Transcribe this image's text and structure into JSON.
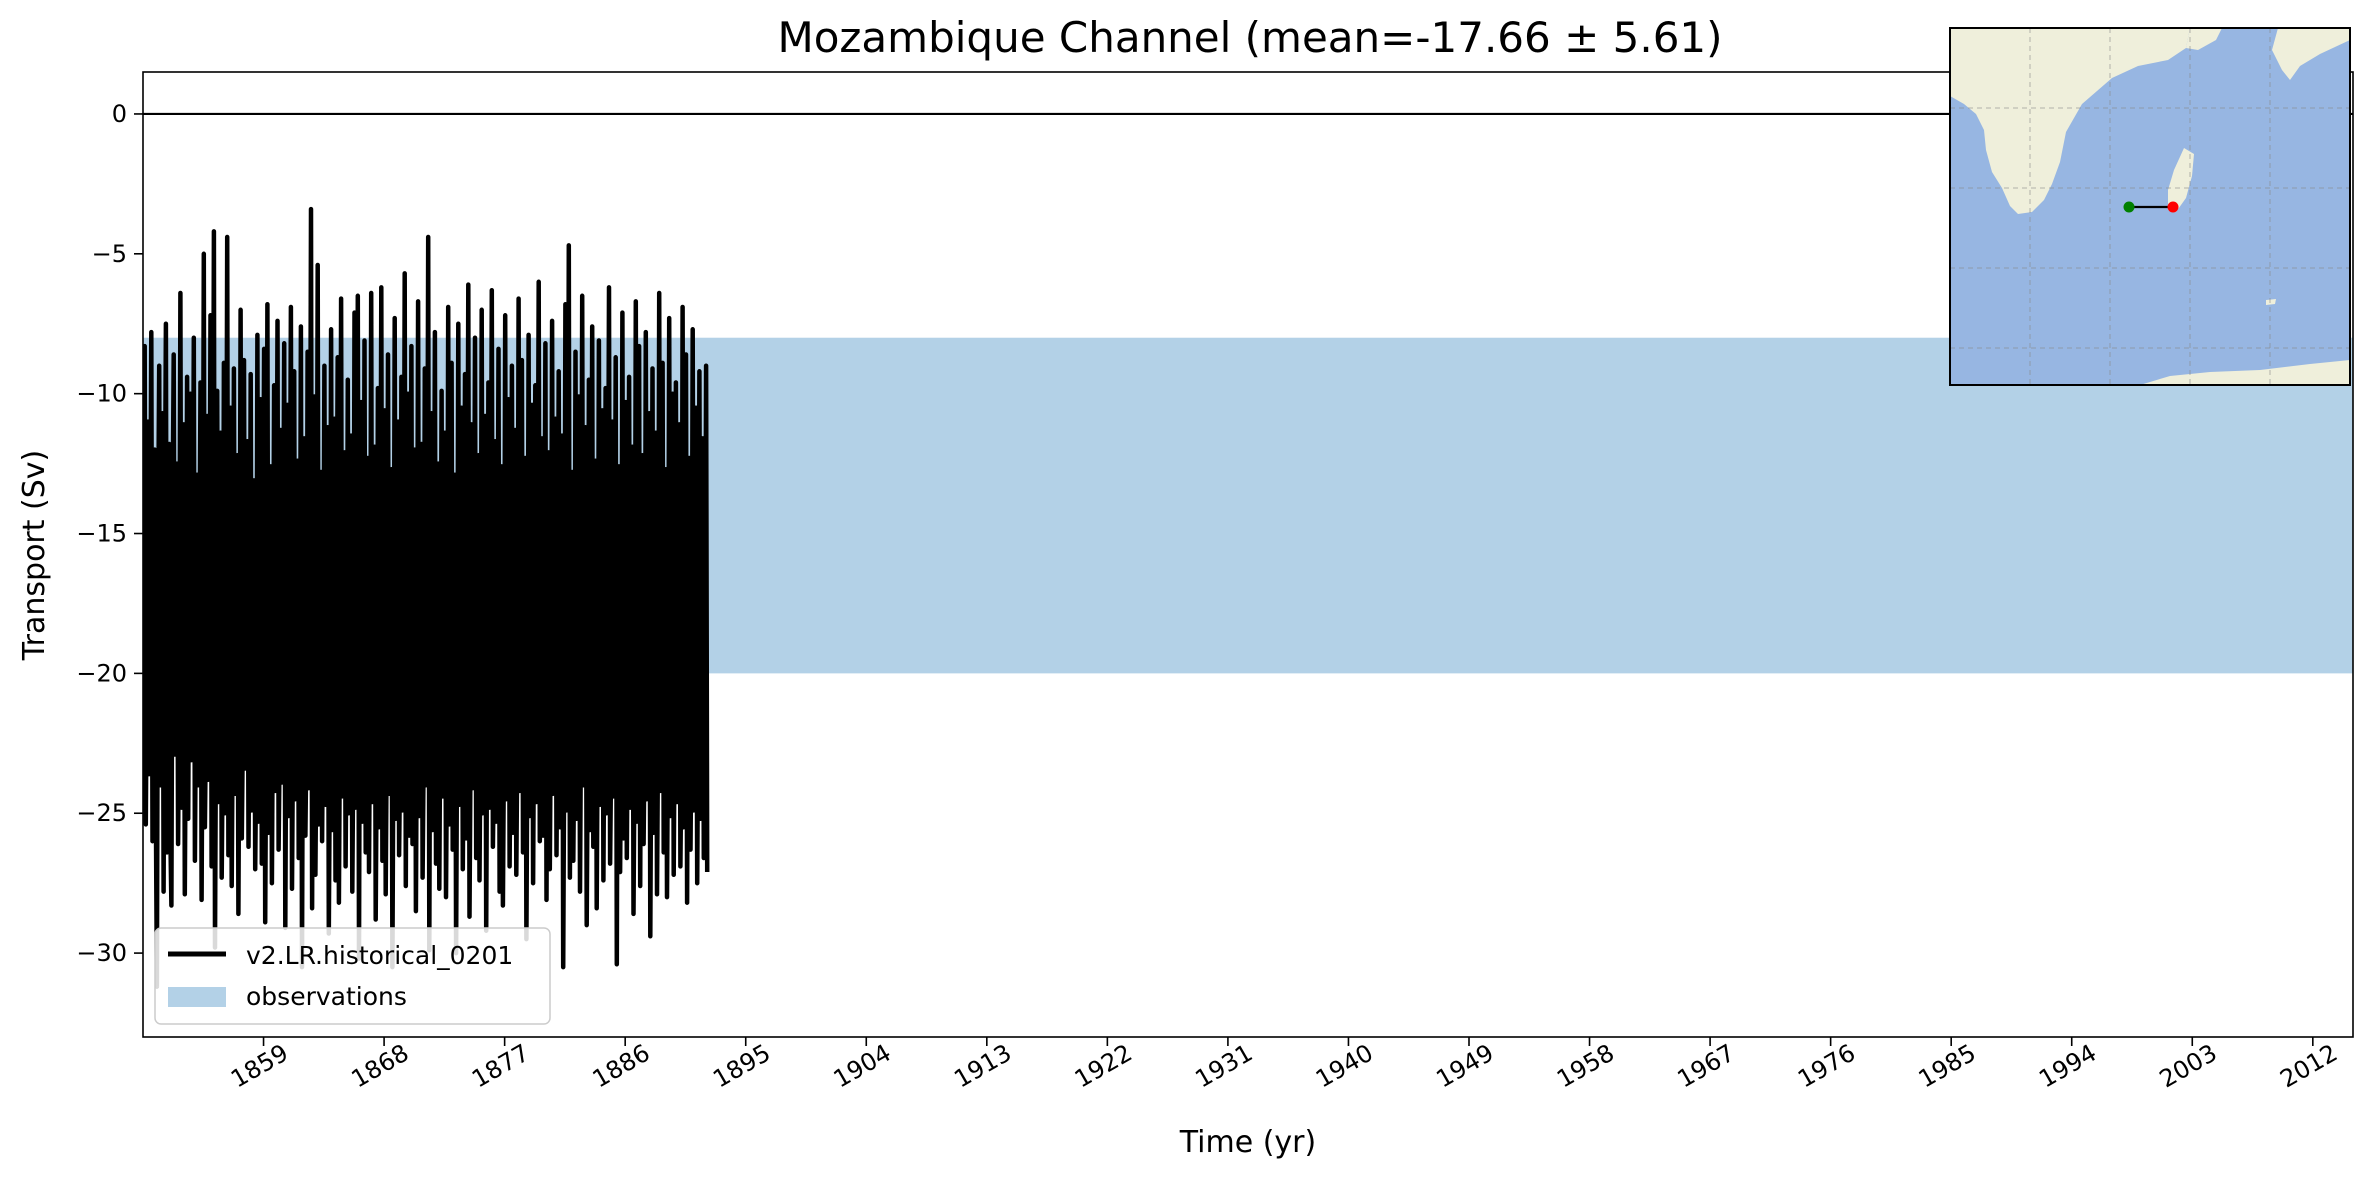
{
  "chart_data": {
    "type": "line",
    "title": "Mozambique Channel (mean=-17.66 ± 5.61)",
    "xlabel": "Time (yr)",
    "ylabel": "Transport (Sv)",
    "xlim": [
      1850,
      2015
    ],
    "ylim": [
      -33,
      1.5
    ],
    "xticks": [
      1859,
      1868,
      1877,
      1886,
      1895,
      1904,
      1913,
      1922,
      1931,
      1940,
      1949,
      1958,
      1967,
      1976,
      1985,
      1994,
      2003,
      2012
    ],
    "yticks": [
      0,
      -5,
      -10,
      -15,
      -20,
      -25,
      -30
    ],
    "zero_line": 0,
    "grid": false,
    "legend": {
      "placement": "lower-left",
      "entries": [
        "v2.LR.historical_0201",
        "observations"
      ]
    },
    "observations_band": {
      "name": "observations",
      "y_low": -20,
      "y_high": -8,
      "color": "#b3d1e7"
    },
    "series": [
      {
        "name": "v2.LR.historical_0201",
        "color": "#000000",
        "x_start": 1850.04,
        "x_step": 0.0833333,
        "values": [
          -17.5,
          -8.3,
          -25.4,
          -19.2,
          -11.0,
          -23.6,
          -16.8,
          -7.8,
          -26.0,
          -18.4,
          -12.0,
          -24.5,
          -31.2,
          -15.6,
          -9.0,
          -24.0,
          -19.3,
          -10.7,
          -27.8,
          -16.1,
          -7.5,
          -26.4,
          -20.1,
          -11.8,
          -25.6,
          -28.3,
          -14.2,
          -8.6,
          -22.9,
          -18.0,
          -12.5,
          -26.1,
          -19.4,
          -6.4,
          -24.8,
          -17.2,
          -11.1,
          -27.9,
          -21.0,
          -9.4,
          -25.2,
          -16.5,
          -10.0,
          -23.1,
          -18.6,
          -8.0,
          -26.7,
          -20.4,
          -12.9,
          -24.0,
          -17.3,
          -9.6,
          -28.1,
          -19.0,
          -5.0,
          -25.5,
          -21.6,
          -10.8,
          -23.8,
          -17.9,
          -7.2,
          -26.9,
          -18.8,
          -4.2,
          -29.8,
          -20.7,
          -9.9,
          -24.6,
          -16.4,
          -11.4,
          -27.3,
          -22.2,
          -8.9,
          -25.0,
          -19.5,
          -4.4,
          -26.5,
          -18.1,
          -10.5,
          -27.6,
          -21.3,
          -9.1,
          -24.3,
          -16.9,
          -12.2,
          -28.6,
          -19.7,
          -7.0,
          -25.9,
          -21.8,
          -8.8,
          -23.4,
          -17.6,
          -11.7,
          -26.2,
          -20.5,
          -9.3,
          -24.9,
          -18.3,
          -13.1,
          -27.0,
          -22.6,
          -7.9,
          -25.3,
          -19.1,
          -10.2,
          -26.8,
          -17.0,
          -8.4,
          -28.9,
          -21.1,
          -6.8,
          -25.7,
          -16.2,
          -12.6,
          -27.5,
          -20.0,
          -9.7,
          -24.2,
          -18.7,
          -7.4,
          -26.3,
          -22.4,
          -11.3,
          -23.9,
          -17.4,
          -8.2,
          -29.1,
          -19.9,
          -10.4,
          -25.1,
          -16.7,
          -6.9,
          -27.7,
          -21.5,
          -9.2,
          -24.5,
          -18.2,
          -12.4,
          -26.6,
          -20.6,
          -7.6,
          -30.5,
          -17.8,
          -11.6,
          -25.8,
          -22.0,
          -8.5,
          -24.1,
          -19.2,
          -3.4,
          -28.4,
          -16.6,
          -10.1,
          -27.2,
          -21.9,
          -5.4,
          -25.4,
          -18.9,
          -12.8,
          -26.0,
          -20.2,
          -9.0,
          -24.7,
          -17.1,
          -11.2,
          -29.3,
          -22.8,
          -7.7,
          -25.6,
          -19.6,
          -10.9,
          -27.4,
          -16.3,
          -8.7,
          -28.2,
          -21.2,
          -6.6,
          -24.4,
          -18.5,
          -12.1,
          -26.9,
          -20.8,
          -9.5,
          -25.0,
          -17.7,
          -11.5,
          -27.8,
          -22.1,
          -7.1,
          -24.8,
          -19.3,
          -6.5,
          -30.2,
          -16.0,
          -10.3,
          -25.3,
          -21.7,
          -8.1,
          -26.4,
          -18.0,
          -12.3,
          -27.1,
          -20.3,
          -6.4,
          -24.6,
          -17.5,
          -11.9,
          -28.8,
          -22.5,
          -9.8,
          -25.5,
          -19.0,
          -6.2,
          -26.7,
          -16.8,
          -10.6,
          -27.9,
          -21.4,
          -8.6,
          -24.3,
          -18.4,
          -12.7,
          -30.5,
          -20.9,
          -7.3,
          -25.2,
          -17.2,
          -11.0,
          -26.5,
          -22.3,
          -9.4,
          -24.9,
          -19.8,
          -5.7,
          -27.6,
          -16.5,
          -10.0,
          -25.8,
          -21.0,
          -8.3,
          -26.1,
          -18.6,
          -12.0,
          -28.5,
          -20.1,
          -6.7,
          -25.1,
          -17.0,
          -11.8,
          -27.3,
          -22.7,
          -9.1,
          -24.0,
          -19.4,
          -4.4,
          -29.9,
          -16.1,
          -10.7,
          -25.6,
          -21.6,
          -7.8,
          -26.8,
          -18.2,
          -12.5,
          -27.7,
          -20.4,
          -9.9,
          -24.4,
          -17.3,
          -11.4,
          -28.0,
          -22.2,
          -6.9,
          -25.4,
          -19.1,
          -8.9,
          -26.3,
          -16.6,
          -12.9,
          -30.0,
          -21.1,
          -7.5,
          -24.7,
          -18.8,
          -10.5,
          -27.0,
          -20.7,
          -9.3,
          -25.9,
          -17.6,
          -6.1,
          -28.7,
          -22.4,
          -11.1,
          -24.1,
          -19.6,
          -8.0,
          -26.6,
          -16.9,
          -12.2,
          -27.4,
          -21.3,
          -7.0,
          -25.0,
          -18.1,
          -10.8,
          -29.2,
          -20.0,
          -9.6,
          -24.8,
          -17.4,
          -6.3,
          -26.2,
          -22.9,
          -11.7,
          -25.3,
          -19.2,
          -8.4,
          -27.8,
          -16.4,
          -12.6,
          -28.3,
          -21.8,
          -7.2,
          -24.5,
          -18.7,
          -10.2,
          -26.9,
          -20.6,
          -9.0,
          -25.7,
          -17.1,
          -11.3,
          -27.2,
          -22.0,
          -6.6,
          -24.2,
          -19.9,
          -8.8,
          -26.4,
          -16.2,
          -12.3,
          -29.5,
          -21.5,
          -7.9,
          -25.1,
          -18.3,
          -10.4,
          -27.5,
          -20.2,
          -9.7,
          -24.6,
          -17.8,
          -6.0,
          -26.0,
          -22.6,
          -11.6,
          -25.8,
          -19.0,
          -8.2,
          -28.1,
          -16.7,
          -12.1,
          -27.0,
          -21.2,
          -7.4,
          -24.3,
          -18.9,
          -10.9,
          -26.5,
          -20.5,
          -9.2,
          -25.5,
          -17.2,
          -11.5,
          -30.5,
          -22.1,
          -6.8,
          -24.9,
          -19.5,
          -4.7,
          -27.3,
          -16.0,
          -12.8,
          -26.7,
          -21.9,
          -8.5,
          -25.2,
          -18.5,
          -10.1,
          -27.8,
          -20.8,
          -6.5,
          -24.0,
          -17.7,
          -11.2,
          -29.0,
          -22.3,
          -9.5,
          -25.6,
          -19.3,
          -7.6,
          -26.2,
          -16.5,
          -12.4,
          -28.4,
          -21.0,
          -8.1,
          -24.7,
          -18.0,
          -10.6,
          -27.4,
          -20.3,
          -9.8,
          -25.0,
          -17.5,
          -6.2,
          -26.8,
          -22.8,
          -11.0,
          -24.4,
          -19.7,
          -8.7,
          -30.4,
          -16.3,
          -12.6,
          -27.1,
          -21.4,
          -7.1,
          -25.9,
          -18.2,
          -10.3,
          -26.6,
          -20.1,
          -9.4,
          -24.8,
          -17.0,
          -11.9,
          -28.6,
          -22.4,
          -6.7,
          -25.3,
          -19.1,
          -8.3,
          -27.6,
          -16.8,
          -12.2,
          -26.1,
          -21.7,
          -7.8,
          -24.5,
          -18.6,
          -10.7,
          -29.4,
          -20.9,
          -9.1,
          -25.7,
          -17.3,
          -11.4,
          -27.9,
          -22.0,
          -6.4,
          -24.2,
          -19.4,
          -8.9,
          -26.4,
          -16.6,
          -12.7,
          -28.0,
          -21.3,
          -7.3,
          -25.1,
          -18.4,
          -10.0,
          -27.2,
          -20.6,
          -9.6,
          -24.6,
          -17.9,
          -11.1,
          -26.9,
          -22.7,
          -6.9,
          -25.5,
          -19.0,
          -8.6,
          -28.2,
          -16.1,
          -12.3,
          -26.3,
          -21.1,
          -7.7,
          -24.9,
          -18.8,
          -10.5,
          -27.5,
          -20.4,
          -9.2,
          -25.2,
          -17.4,
          -11.6,
          -26.6,
          -22.3,
          -9.0,
          -27.1
        ]
      }
    ]
  },
  "inset_map": {
    "description_legend": "",
    "colors": {
      "ocean": "#97b6e2",
      "land": "#efefdb",
      "start_point": "#008000",
      "end_point": "#ff0000",
      "section_line": "#000000"
    }
  }
}
